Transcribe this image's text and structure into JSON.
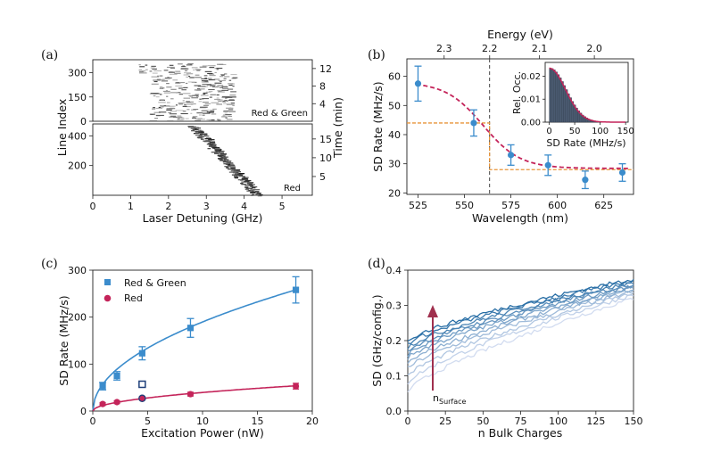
{
  "panels": {
    "a": {
      "label": "(a)",
      "top": {
        "label": "Red & Green",
        "yticks": [
          "0",
          "150",
          "300"
        ],
        "ytick_values": [
          0,
          150,
          300
        ],
        "yrange": [
          0,
          380
        ],
        "right_ticks": [
          "4",
          "8",
          "12"
        ],
        "right_tick_minutes": [
          4,
          8,
          12
        ],
        "right_range_min": [
          0,
          14
        ]
      },
      "bottom": {
        "label": "Red",
        "yticks": [
          "200",
          "400"
        ],
        "ytick_values": [
          200,
          400
        ],
        "yrange": [
          0,
          480
        ],
        "right_ticks": [
          "5",
          "10",
          "15"
        ],
        "right_tick_minutes": [
          5,
          10,
          15
        ],
        "right_range_min": [
          0,
          19
        ]
      },
      "xlabel": "Laser Detuning (GHz)",
      "ylabel": "Line Index",
      "ylabel_right": "Time (min)",
      "xticks": [
        "0",
        "1",
        "2",
        "3",
        "4",
        "5"
      ],
      "xrange": [
        0,
        5.8
      ]
    },
    "b": {
      "label": "(b)",
      "xlabel": "Wavelength (nm)",
      "ylabel": "SD Rate (MHz/s)",
      "top_xlabel": "Energy (eV)",
      "xticks": [
        "525",
        "550",
        "575",
        "600",
        "625"
      ],
      "yticks": [
        "20",
        "30",
        "40",
        "50",
        "60"
      ],
      "top_ticks": [
        "2.3",
        "2.2",
        "2.1",
        "2.0"
      ],
      "top_tick_ev": [
        2.3,
        2.2,
        2.1,
        2.0
      ],
      "inset": {
        "xlabel": "SD Rate (MHz/s)",
        "ylabel": "Rel. Occ.",
        "xticks": [
          "0",
          "50",
          "100",
          "150"
        ],
        "yticks": [
          "0.00",
          "0.01",
          "0.02"
        ]
      }
    },
    "c": {
      "label": "(c)",
      "xlabel": "Excitation Power (nW)",
      "ylabel": "SD Rate (MHz/s)",
      "xticks": [
        "0",
        "5",
        "10",
        "15",
        "20"
      ],
      "yticks": [
        "0",
        "100",
        "200",
        "300"
      ],
      "legend": {
        "red_green": "Red & Green",
        "red": "Red"
      }
    },
    "d": {
      "label": "(d)",
      "xlabel": "n Bulk Charges",
      "ylabel": "SD (GHz/config.)",
      "xticks": [
        "0",
        "25",
        "50",
        "75",
        "100",
        "125",
        "150"
      ],
      "yticks": [
        "0.0",
        "0.1",
        "0.2",
        "0.3",
        "0.4"
      ],
      "arrow_label_main": "n",
      "arrow_label_sub": "Surface"
    }
  },
  "colors": {
    "blue": "#3b8ccc",
    "crimson": "#c4245a",
    "orange": "#e8953a",
    "gray": "#555555",
    "arrow": "#a0304e"
  },
  "chart_data": [
    {
      "type": "heatmap",
      "panel": "a",
      "title": "",
      "xlabel": "Laser Detuning (GHz)",
      "ylabel": "Line Index",
      "y2label": "Time (min)",
      "xlim": [
        0,
        5.8
      ],
      "series": [
        {
          "name": "Red & Green",
          "ylim": [
            0,
            380
          ]
        },
        {
          "name": "Red",
          "ylim": [
            0,
            480
          ],
          "trace_x_start": 2.6,
          "trace_x_end": 4.3
        }
      ]
    },
    {
      "type": "scatter",
      "panel": "b",
      "title": "",
      "xlabel": "Wavelength (nm)",
      "ylabel": "SD Rate (MHz/s)",
      "x2label": "Energy (eV)",
      "xlim": [
        519,
        641
      ],
      "ylim": [
        19.5,
        66
      ],
      "x": [
        525,
        555,
        575,
        595,
        615,
        635
      ],
      "y": [
        57.5,
        44,
        33,
        29.5,
        24.5,
        27
      ],
      "err": [
        6,
        4.5,
        3.5,
        3.5,
        3,
        3
      ],
      "fit": {
        "name": "sigmoid fit",
        "high": 58,
        "low": 28.4,
        "center": 560,
        "width": 10
      },
      "step": {
        "x_edge": 563.5,
        "high": 44,
        "low": 28
      },
      "vline_x": 563.5,
      "inset": {
        "type": "bar",
        "xlabel": "SD Rate (MHz/s)",
        "ylabel": "Rel. Occ.",
        "xlim": [
          -8,
          155
        ],
        "ylim": [
          0,
          0.026
        ],
        "bin_width": 4,
        "peak": 0.0235,
        "decay": 45
      }
    },
    {
      "type": "scatter",
      "panel": "c",
      "title": "",
      "xlabel": "Excitation Power (nW)",
      "ylabel": "SD Rate (MHz/s)",
      "xlim": [
        0,
        20
      ],
      "ylim": [
        0,
        300
      ],
      "series": [
        {
          "name": "Red & Green",
          "x": [
            0.9,
            2.2,
            4.5,
            8.9,
            18.5
          ],
          "y": [
            53,
            75,
            123,
            177,
            258
          ],
          "err": [
            8,
            9,
            14,
            20,
            28
          ],
          "fit": "a*sqrt(x)"
        },
        {
          "name": "Red",
          "x": [
            0.9,
            2.2,
            4.5,
            8.9,
            18.5
          ],
          "y": [
            15,
            19,
            28,
            36,
            53
          ],
          "err": [
            3,
            3,
            3,
            4,
            6
          ],
          "fit": "a*x^0.5"
        },
        {
          "name": "open square",
          "x": [
            4.5
          ],
          "y": [
            57
          ]
        },
        {
          "name": "open circle",
          "x": [
            4.5
          ],
          "y": [
            27
          ]
        }
      ]
    },
    {
      "type": "line",
      "panel": "d",
      "title": "",
      "xlabel": "n Bulk Charges",
      "ylabel": "SD (GHz/config.)",
      "xlim": [
        0,
        150
      ],
      "ylim": [
        0,
        0.4
      ],
      "series_count": 11,
      "start_values": [
        0.2,
        0.19,
        0.18,
        0.17,
        0.16,
        0.15,
        0.135,
        0.12,
        0.1,
        0.08,
        0.055
      ],
      "end_values": [
        0.375,
        0.37,
        0.365,
        0.36,
        0.355,
        0.35,
        0.345,
        0.34,
        0.335,
        0.33,
        0.32
      ]
    }
  ]
}
